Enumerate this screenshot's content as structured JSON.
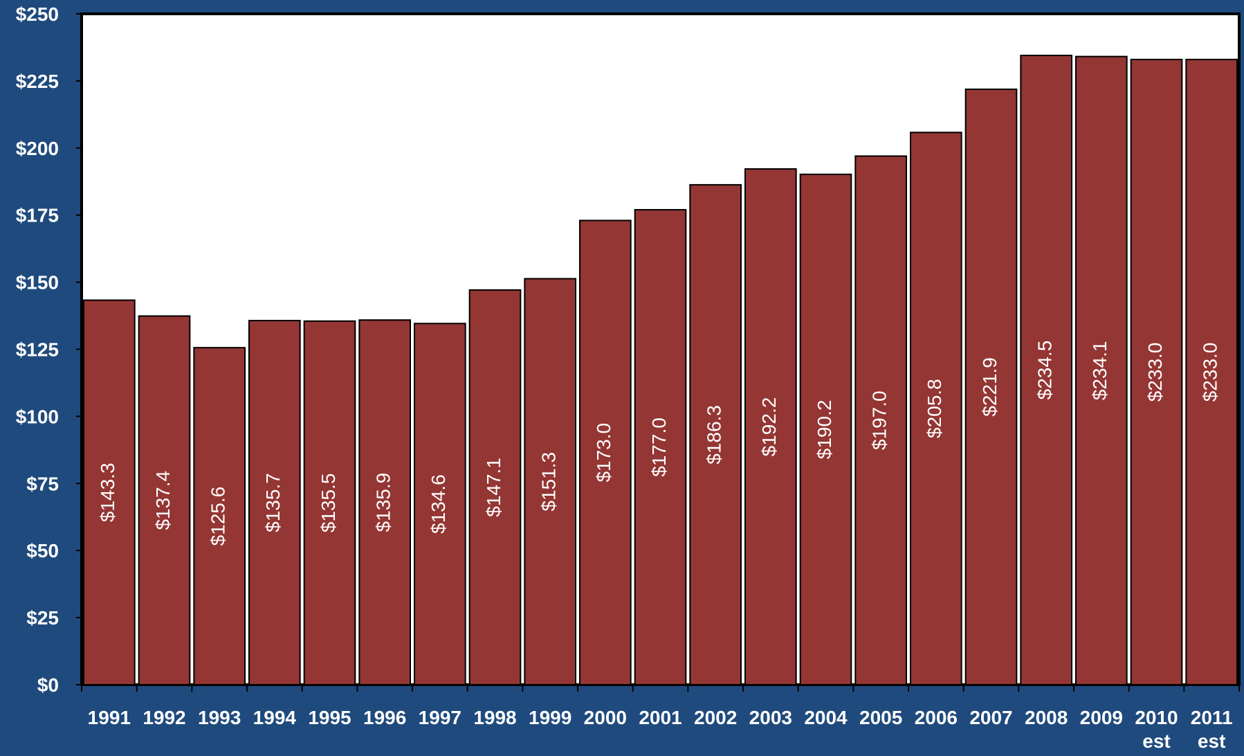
{
  "chart_data": {
    "type": "bar",
    "categories": [
      "1991",
      "1992",
      "1993",
      "1994",
      "1995",
      "1996",
      "1997",
      "1998",
      "1999",
      "2000",
      "2001",
      "2002",
      "2003",
      "2004",
      "2005",
      "2006",
      "2007",
      "2008",
      "2009",
      "2010\nest",
      "2011\nest"
    ],
    "values": [
      143.3,
      137.4,
      125.6,
      135.7,
      135.5,
      135.9,
      134.6,
      147.1,
      151.3,
      173.0,
      177.0,
      186.3,
      192.2,
      190.2,
      197.0,
      205.8,
      221.9,
      234.5,
      234.1,
      233.0,
      233.0
    ],
    "data_labels": [
      "$143.3",
      "$137.4",
      "$125.6",
      "$135.7",
      "$135.5",
      "$135.9",
      "$134.6",
      "$147.1",
      "$151.3",
      "$173.0",
      "$177.0",
      "$186.3",
      "$192.2",
      "$190.2",
      "$197.0",
      "$205.8",
      "$221.9",
      "$234.5",
      "$234.1",
      "$233.0",
      "$233.0"
    ],
    "y_ticks": [
      0,
      25,
      50,
      75,
      100,
      125,
      150,
      175,
      200,
      225,
      250
    ],
    "y_tick_labels": [
      "$0",
      "$25",
      "$50",
      "$75",
      "$100",
      "$125",
      "$150",
      "$175",
      "$200",
      "$225",
      "$250"
    ],
    "ylim": [
      0,
      250
    ],
    "title": "",
    "xlabel": "",
    "ylabel": "",
    "grid": false,
    "colors": {
      "background": "#1f4a7d",
      "plot_area": "#ffffff",
      "bar_fill": "#943634",
      "bar_stroke": "#000000",
      "label_text": "#ffffff"
    }
  }
}
